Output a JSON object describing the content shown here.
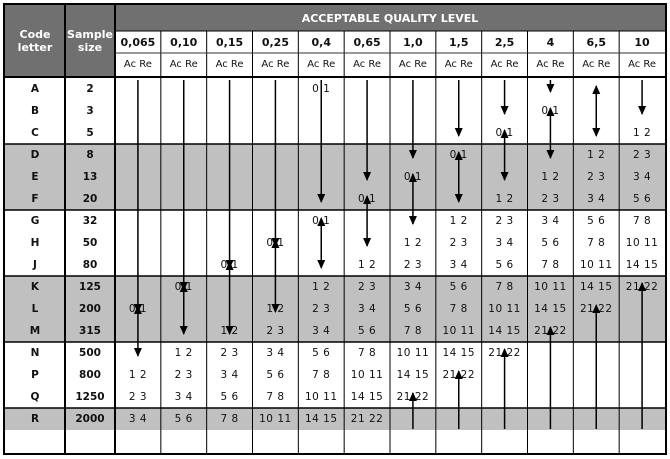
{
  "title": "ACCEPTABLE QUALITY LEVEL",
  "headers": {
    "code_letter": "Code\nletter",
    "sample_size": "Sample\nsize"
  },
  "aql_levels": [
    "0,065",
    "0,10",
    "0,15",
    "0,25",
    "0,4",
    "0,65",
    "1,0",
    "1,5",
    "2,5",
    "4",
    "6,5",
    "10"
  ],
  "ac_re": "Ac Re",
  "colors": {
    "header": "#707070",
    "shaded": "#c0c0c0",
    "white": "#ffffff"
  },
  "groups": [
    {
      "shaded": false,
      "codes": [
        "A",
        "B",
        "C"
      ],
      "sizes": [
        "2",
        "3",
        "5"
      ]
    },
    {
      "shaded": true,
      "codes": [
        "D",
        "E",
        "F"
      ],
      "sizes": [
        "8",
        "13",
        "20"
      ]
    },
    {
      "shaded": false,
      "codes": [
        "G",
        "H",
        "J"
      ],
      "sizes": [
        "32",
        "50",
        "80"
      ]
    },
    {
      "shaded": true,
      "codes": [
        "K",
        "L",
        "M"
      ],
      "sizes": [
        "125",
        "200",
        "315"
      ]
    },
    {
      "shaded": false,
      "codes": [
        "N",
        "P",
        "Q"
      ],
      "sizes": [
        "500",
        "800",
        "1250"
      ]
    },
    {
      "shaded": true,
      "codes": [
        "R"
      ],
      "sizes": [
        "2000"
      ]
    }
  ],
  "cells": [
    [
      "A",
      4,
      "0 1"
    ],
    [
      "C",
      8,
      "0 1"
    ],
    [
      "C",
      11,
      "1 2"
    ],
    [
      "B",
      9,
      "0 1"
    ],
    [
      "D",
      7,
      "0 1"
    ],
    [
      "D",
      10,
      "1 2"
    ],
    [
      "D",
      11,
      "2 3"
    ],
    [
      "E",
      6,
      "0 1"
    ],
    [
      "E",
      9,
      "1 2"
    ],
    [
      "E",
      10,
      "2 3"
    ],
    [
      "E",
      11,
      "3 4"
    ],
    [
      "F",
      5,
      "0 1"
    ],
    [
      "F",
      8,
      "1 2"
    ],
    [
      "F",
      9,
      "2 3"
    ],
    [
      "F",
      10,
      "3 4"
    ],
    [
      "F",
      11,
      "5 6"
    ],
    [
      "G",
      4,
      "0 1"
    ],
    [
      "G",
      7,
      "1 2"
    ],
    [
      "G",
      8,
      "2 3"
    ],
    [
      "G",
      9,
      "3 4"
    ],
    [
      "G",
      10,
      "5 6"
    ],
    [
      "G",
      11,
      "7 8"
    ],
    [
      "H",
      3,
      "0 1"
    ],
    [
      "H",
      6,
      "1 2"
    ],
    [
      "H",
      7,
      "2 3"
    ],
    [
      "H",
      8,
      "3 4"
    ],
    [
      "H",
      9,
      "5 6"
    ],
    [
      "H",
      10,
      "7 8"
    ],
    [
      "H",
      11,
      "10 11"
    ],
    [
      "J",
      2,
      "0 1"
    ],
    [
      "J",
      5,
      "1 2"
    ],
    [
      "J",
      6,
      "2 3"
    ],
    [
      "J",
      7,
      "3 4"
    ],
    [
      "J",
      8,
      "5 6"
    ],
    [
      "J",
      9,
      "7 8"
    ],
    [
      "J",
      10,
      "10 11"
    ],
    [
      "J",
      11,
      "14 15"
    ],
    [
      "K",
      4,
      "1 2"
    ],
    [
      "K",
      5,
      "2 3"
    ],
    [
      "K",
      6,
      "3 4"
    ],
    [
      "K",
      7,
      "5 6"
    ],
    [
      "K",
      8,
      "7 8"
    ],
    [
      "K",
      9,
      "10 11"
    ],
    [
      "K",
      10,
      "14 15"
    ],
    [
      "K",
      11,
      "21 22"
    ],
    [
      "K",
      1,
      "0 1"
    ],
    [
      "L",
      0,
      "0 1"
    ],
    [
      "L",
      3,
      "1 2"
    ],
    [
      "L",
      4,
      "2 3"
    ],
    [
      "L",
      5,
      "3 4"
    ],
    [
      "L",
      6,
      "5 6"
    ],
    [
      "L",
      7,
      "7 8"
    ],
    [
      "L",
      8,
      "10 11"
    ],
    [
      "L",
      9,
      "14 15"
    ],
    [
      "L",
      10,
      "21 22"
    ],
    [
      "M",
      2,
      "1 2"
    ],
    [
      "M",
      3,
      "2 3"
    ],
    [
      "M",
      4,
      "3 4"
    ],
    [
      "M",
      5,
      "5 6"
    ],
    [
      "M",
      6,
      "7 8"
    ],
    [
      "M",
      7,
      "10 11"
    ],
    [
      "M",
      8,
      "14 15"
    ],
    [
      "M",
      9,
      "21 22"
    ],
    [
      "N",
      1,
      "1 2"
    ],
    [
      "N",
      2,
      "2 3"
    ],
    [
      "N",
      3,
      "3 4"
    ],
    [
      "N",
      4,
      "5 6"
    ],
    [
      "N",
      5,
      "7 8"
    ],
    [
      "N",
      6,
      "10 11"
    ],
    [
      "N",
      7,
      "14 15"
    ],
    [
      "N",
      8,
      "21 22"
    ],
    [
      "P",
      0,
      "1 2"
    ],
    [
      "P",
      1,
      "2 3"
    ],
    [
      "P",
      2,
      "3 4"
    ],
    [
      "P",
      3,
      "5 6"
    ],
    [
      "P",
      4,
      "7 8"
    ],
    [
      "P",
      5,
      "10 11"
    ],
    [
      "P",
      6,
      "14 15"
    ],
    [
      "P",
      7,
      "21 22"
    ],
    [
      "Q",
      0,
      "2 3"
    ],
    [
      "Q",
      1,
      "3 4"
    ],
    [
      "Q",
      2,
      "5 6"
    ],
    [
      "Q",
      3,
      "7 8"
    ],
    [
      "Q",
      4,
      "10 11"
    ],
    [
      "Q",
      5,
      "14 15"
    ],
    [
      "Q",
      6,
      "21 22"
    ],
    [
      "R",
      0,
      "3 4"
    ],
    [
      "R",
      1,
      "5 6"
    ],
    [
      "R",
      2,
      "7 8"
    ],
    [
      "R",
      3,
      "10 11"
    ],
    [
      "R",
      4,
      "14 15"
    ],
    [
      "R",
      5,
      "21 22"
    ]
  ],
  "arrows": [
    {
      "col": 0,
      "type": "down",
      "from": "A",
      "to": "L"
    },
    {
      "col": 0,
      "type": "both",
      "from": "L",
      "to": "N"
    },
    {
      "col": 1,
      "type": "down",
      "from": "A",
      "to": "K"
    },
    {
      "col": 1,
      "type": "both",
      "from": "K",
      "to": "M"
    },
    {
      "col": 2,
      "type": "down",
      "from": "A",
      "to": "J"
    },
    {
      "col": 2,
      "type": "both",
      "from": "J",
      "to": "M"
    },
    {
      "col": 3,
      "type": "down",
      "from": "A",
      "to": "H"
    },
    {
      "col": 3,
      "type": "both",
      "from": "H",
      "to": "L"
    },
    {
      "col": 4,
      "type": "down",
      "from": "A",
      "to": "F"
    },
    {
      "col": 4,
      "type": "both",
      "from": "G",
      "to": "J"
    },
    {
      "col": 5,
      "type": "down",
      "from": "A",
      "to": "E"
    },
    {
      "col": 5,
      "type": "both",
      "from": "F",
      "to": "H"
    },
    {
      "col": 6,
      "type": "down",
      "from": "A",
      "to": "D"
    },
    {
      "col": 6,
      "type": "both",
      "from": "E",
      "to": "G"
    },
    {
      "col": 6,
      "type": "up",
      "from": "Q",
      "to": "R"
    },
    {
      "col": 7,
      "type": "down",
      "from": "A",
      "to": "C"
    },
    {
      "col": 7,
      "type": "both",
      "from": "D",
      "to": "F"
    },
    {
      "col": 7,
      "type": "up",
      "from": "P",
      "to": "R"
    },
    {
      "col": 8,
      "type": "down",
      "from": "A",
      "to": "B"
    },
    {
      "col": 8,
      "type": "both",
      "from": "C",
      "to": "E"
    },
    {
      "col": 8,
      "type": "up",
      "from": "N",
      "to": "R"
    },
    {
      "col": 9,
      "type": "down",
      "from": "A",
      "to": "A"
    },
    {
      "col": 9,
      "type": "both",
      "from": "B",
      "to": "D"
    },
    {
      "col": 9,
      "type": "up",
      "from": "M",
      "to": "R"
    },
    {
      "col": 10,
      "type": "both",
      "from": "A",
      "to": "C"
    },
    {
      "col": 10,
      "type": "up",
      "from": "L",
      "to": "R"
    },
    {
      "col": 11,
      "type": "down",
      "from": "A",
      "to": "B"
    },
    {
      "col": 11,
      "type": "up",
      "from": "K",
      "to": "R"
    }
  ]
}
